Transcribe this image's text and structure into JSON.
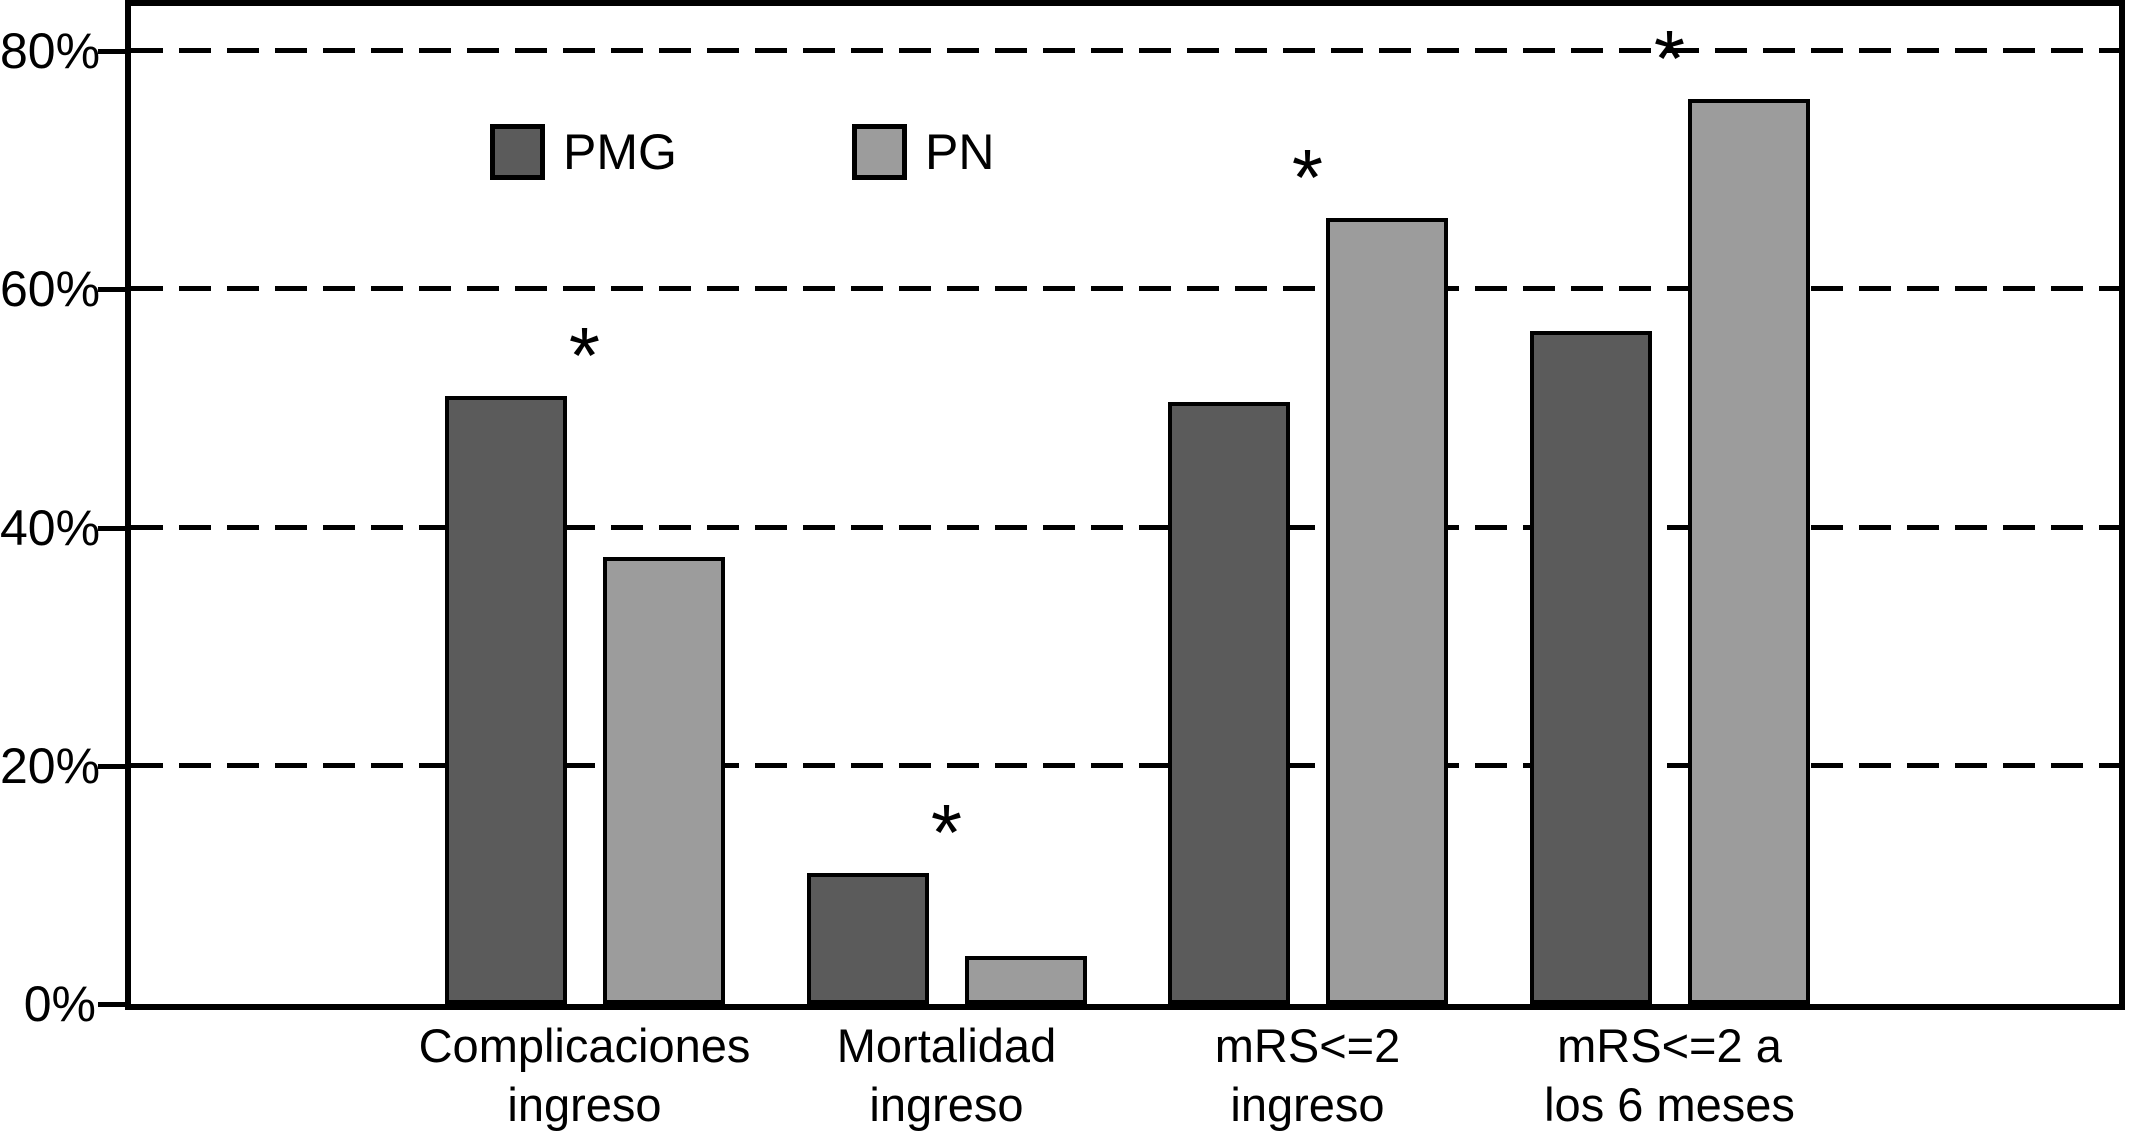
{
  "chart_data": {
    "type": "bar",
    "title": "",
    "xlabel": "",
    "ylabel": "",
    "categories": [
      [
        "Complicaciones",
        "ingreso"
      ],
      [
        "Mortalidad",
        "ingreso"
      ],
      [
        "mRS<=2",
        "ingreso"
      ],
      [
        "mRS<=2 a",
        "los 6 meses"
      ]
    ],
    "series": [
      {
        "name": "PMG",
        "color": "#5b5b5b",
        "values": [
          51,
          11,
          50.5,
          56.5
        ]
      },
      {
        "name": "PN",
        "color": "#9c9c9c",
        "values": [
          37.5,
          4,
          66,
          76
        ]
      }
    ],
    "units": "%",
    "ytick_labels": [
      "0%",
      "20%",
      "40%",
      "60%",
      "80%"
    ],
    "ytick_values": [
      0,
      20,
      40,
      60,
      80
    ],
    "ylim": [
      0,
      84
    ],
    "grid": "horizontal-dashed",
    "legend_position": "inside-top-left",
    "significance_marker": "*",
    "significant_groups": [
      true,
      true,
      true,
      true
    ]
  },
  "legend": {
    "items": [
      {
        "label": "PMG",
        "color": "#5b5b5b"
      },
      {
        "label": "PN",
        "color": "#9c9c9c"
      }
    ]
  },
  "colors": {
    "axis": "#000000",
    "background": "#ffffff",
    "text": "#000000"
  }
}
